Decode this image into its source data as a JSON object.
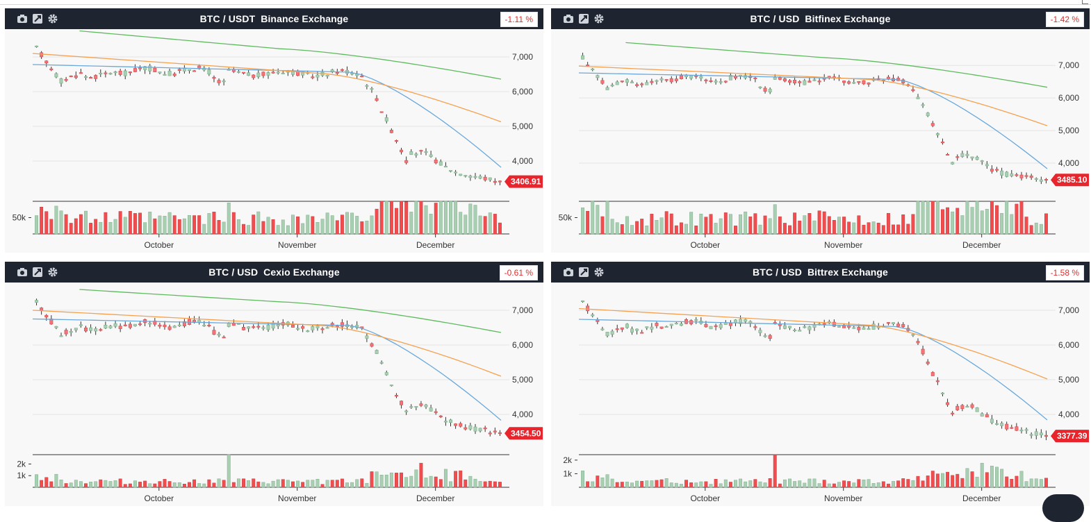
{
  "colors": {
    "header_bg": "#1f2431",
    "up_candle": "#a8cfb2",
    "down_candle": "#f47577",
    "ma_fast": "#6aa8db",
    "ma_mid": "#f5a14f",
    "ma_slow": "#5dbb5d",
    "price_tag": "#e8242c",
    "vol_up": "#a8cfb2",
    "vol_down": "#f14d4f"
  },
  "icons": [
    "camera-icon",
    "expand-icon",
    "gear-icon"
  ],
  "panels": [
    {
      "pair": "BTC / USDT",
      "exchange": "Binance Exchange",
      "change": "-1.11 %",
      "chart_data": {
        "type": "candlestick",
        "x_ticks": [
          "October",
          "November",
          "December"
        ],
        "price_ticks": [
          4000,
          5000,
          6000,
          7000
        ],
        "price_tick_labels": [
          "4,000",
          "5,000",
          "6,000",
          "7,000"
        ],
        "price_range": [
          3000,
          7600
        ],
        "last_price": "3406.91",
        "last_price_value": 3406.91,
        "ma_start": [
          6780,
          7100,
          7750
        ],
        "ma_mid_level": [
          6560,
          6520,
          7230
        ],
        "ma_end": [
          3820,
          5130,
          6360
        ],
        "volume_ticks": [
          "50k"
        ],
        "volume_tick_values": [
          50000
        ],
        "volume_range": [
          0,
          100000
        ],
        "volume_scale": 95000,
        "volume_spike": 95000
      }
    },
    {
      "pair": "BTC / USD",
      "exchange": "Bitfinex Exchange",
      "change": "-1.42 %",
      "chart_data": {
        "type": "candlestick",
        "x_ticks": [
          "October",
          "November",
          "December"
        ],
        "price_ticks": [
          4000,
          5000,
          6000,
          7000
        ],
        "price_tick_labels": [
          "4,000",
          "5,000",
          "6,000",
          "7,000"
        ],
        "price_range": [
          3000,
          7900
        ],
        "last_price": "3485.10",
        "last_price_value": 3485.1,
        "ma_start": [
          6770,
          6980,
          7700
        ],
        "ma_mid_level": [
          6570,
          6570,
          7230
        ],
        "ma_end": [
          3830,
          5150,
          6330
        ],
        "volume_ticks": [
          "50k"
        ],
        "volume_tick_values": [
          50000
        ],
        "volume_range": [
          0,
          100000
        ],
        "volume_scale": 95000,
        "volume_spike": 90000
      }
    },
    {
      "pair": "BTC / USD",
      "exchange": "Cexio Exchange",
      "change": "-0.61 %",
      "chart_data": {
        "type": "candlestick",
        "x_ticks": [
          "October",
          "November",
          "December"
        ],
        "price_ticks": [
          4000,
          5000,
          6000,
          7000
        ],
        "price_tick_labels": [
          "4,000",
          "5,000",
          "6,000",
          "7,000"
        ],
        "price_range": [
          3000,
          7600
        ],
        "last_price": "3454.50",
        "last_price_value": 3454.5,
        "ma_start": [
          6750,
          7000,
          7600
        ],
        "ma_mid_level": [
          6560,
          6560,
          7240
        ],
        "ma_end": [
          3830,
          5100,
          6360
        ],
        "volume_ticks": [
          "1k",
          "2k"
        ],
        "volume_tick_values": [
          1000,
          2000
        ],
        "volume_range": [
          0,
          2800
        ],
        "volume_scale": 1000,
        "volume_spike": 2800
      }
    },
    {
      "pair": "BTC / USD",
      "exchange": "Bittrex Exchange",
      "change": "-1.58 %",
      "chart_data": {
        "type": "candlestick",
        "x_ticks": [
          "October",
          "November",
          "December"
        ],
        "price_ticks": [
          4000,
          5000,
          6000,
          7000
        ],
        "price_tick_labels": [
          "4,000",
          "5,000",
          "6,000",
          "7,000"
        ],
        "price_range": [
          3000,
          7600
        ],
        "last_price": "3377.39",
        "last_price_value": 3377.39,
        "ma_start": [
          6740,
          7050,
          0
        ],
        "ma_mid_level": [
          6530,
          6570,
          0
        ],
        "ma_end": [
          3840,
          5020,
          0
        ],
        "volume_ticks": [
          "1k",
          "2k"
        ],
        "volume_tick_values": [
          1000,
          2000
        ],
        "volume_range": [
          0,
          2400
        ],
        "volume_scale": 900,
        "volume_spike": 2400
      }
    }
  ]
}
